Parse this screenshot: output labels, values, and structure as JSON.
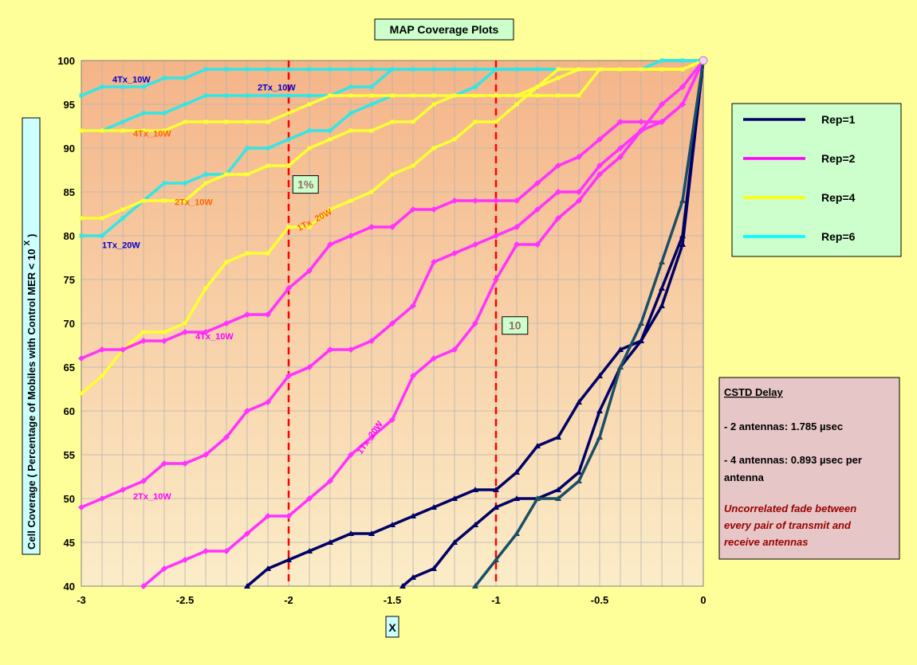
{
  "chart_data": {
    "type": "line",
    "title": "MAP Coverage Plots",
    "xlabel": "X",
    "ylabel": "Cell Coverage ( Percentage of Mobiles with Control MER < 10",
    "ylabel_sup": "X",
    "ylabel_close": ")",
    "xlim": [
      -3,
      0
    ],
    "ylim": [
      40,
      100
    ],
    "xticks": [
      "-3",
      "-2.5",
      "-2",
      "-1.5",
      "-1",
      "-0.5",
      "0"
    ],
    "yticks": [
      "40",
      "45",
      "50",
      "55",
      "60",
      "65",
      "70",
      "75",
      "80",
      "85",
      "90",
      "95",
      "100"
    ],
    "grid": true,
    "legend_position": "right",
    "series": [
      {
        "name": "Rep=6",
        "color": "#33e6e6",
        "marker": "square",
        "x": [
          -3,
          -2.9,
          -2.8,
          -2.7,
          -2.6,
          -2.5,
          -2.4,
          -2.3,
          -2.2,
          -2.1,
          -2,
          -1.9,
          -1.8,
          -1.7,
          -1.6,
          -1.5,
          -1.4,
          -1.3,
          -1.2,
          -1.1,
          -1,
          -0.9,
          -0.8,
          -0.7,
          -0.6,
          -0.5,
          -0.4,
          -0.3,
          -0.2,
          -0.1,
          0
        ],
        "y": [
          96,
          97,
          97,
          97,
          98,
          98,
          99,
          99,
          99,
          99,
          99,
          99,
          99,
          99,
          99,
          99,
          99,
          99,
          99,
          99,
          99,
          99,
          99,
          99,
          99,
          99,
          99,
          99,
          100,
          100,
          100
        ]
      },
      {
        "name": "Rep=6",
        "color": "#33e6e6",
        "marker": "square",
        "x": [
          -3,
          -2.9,
          -2.8,
          -2.7,
          -2.6,
          -2.5,
          -2.4,
          -2.3,
          -2.2,
          -2.1,
          -2,
          -1.9,
          -1.8,
          -1.7,
          -1.6,
          -1.5,
          -1.4,
          -1.3,
          -1.2,
          -1.1,
          -1,
          -0.9,
          -0.8,
          -0.7,
          -0.6,
          -0.5,
          -0.4,
          -0.3,
          -0.2,
          -0.1,
          0
        ],
        "y": [
          92,
          92,
          93,
          94,
          94,
          95,
          96,
          96,
          96,
          96,
          96,
          96,
          96,
          97,
          97,
          99,
          99,
          99,
          99,
          99,
          99,
          99,
          99,
          99,
          99,
          99,
          99,
          99,
          100,
          100,
          100
        ]
      },
      {
        "name": "Rep=6",
        "color": "#33e6e6",
        "marker": "square",
        "x": [
          -3,
          -2.9,
          -2.8,
          -2.7,
          -2.6,
          -2.5,
          -2.4,
          -2.3,
          -2.2,
          -2.1,
          -2,
          -1.9,
          -1.8,
          -1.7,
          -1.6,
          -1.5,
          -1.4,
          -1.3,
          -1.2,
          -1.1,
          -1,
          -0.9,
          -0.8,
          -0.7,
          -0.6,
          -0.5,
          -0.4,
          -0.3,
          -0.2,
          -0.1,
          0
        ],
        "y": [
          80,
          80,
          82,
          84,
          86,
          86,
          87,
          87,
          90,
          90,
          91,
          92,
          92,
          94,
          95,
          96,
          96,
          96,
          96,
          97,
          99,
          99,
          99,
          99,
          99,
          99,
          99,
          99,
          100,
          100,
          100
        ]
      },
      {
        "name": "Rep=4",
        "color": "#ffff33",
        "marker": "square",
        "x": [
          -3,
          -2.9,
          -2.8,
          -2.7,
          -2.6,
          -2.5,
          -2.4,
          -2.3,
          -2.2,
          -2.1,
          -2,
          -1.9,
          -1.8,
          -1.7,
          -1.6,
          -1.5,
          -1.4,
          -1.3,
          -1.2,
          -1.1,
          -1,
          -0.9,
          -0.8,
          -0.7,
          -0.6,
          -0.5,
          -0.4,
          -0.3,
          -0.2,
          -0.1,
          0
        ],
        "y": [
          92,
          92,
          92,
          92,
          92,
          93,
          93,
          93,
          93,
          93,
          94,
          95,
          96,
          96,
          96,
          96,
          96,
          96,
          96,
          96,
          96,
          96,
          96,
          96,
          96,
          99,
          99,
          99,
          99,
          99,
          100
        ]
      },
      {
        "name": "Rep=4",
        "color": "#ffff33",
        "marker": "square",
        "x": [
          -3,
          -2.9,
          -2.8,
          -2.7,
          -2.6,
          -2.5,
          -2.4,
          -2.3,
          -2.2,
          -2.1,
          -2,
          -1.9,
          -1.8,
          -1.7,
          -1.6,
          -1.5,
          -1.4,
          -1.3,
          -1.2,
          -1.1,
          -1,
          -0.9,
          -0.8,
          -0.7,
          -0.6,
          -0.5,
          -0.4,
          -0.3,
          -0.2,
          -0.1,
          0
        ],
        "y": [
          82,
          82,
          83,
          84,
          84,
          84,
          86,
          87,
          87,
          88,
          88,
          90,
          91,
          92,
          92,
          93,
          93,
          95,
          96,
          96,
          96,
          96,
          97,
          98,
          99,
          99,
          99,
          99,
          99,
          99,
          100
        ]
      },
      {
        "name": "Rep=4",
        "color": "#ffff33",
        "marker": "square",
        "x": [
          -3,
          -2.9,
          -2.8,
          -2.7,
          -2.6,
          -2.5,
          -2.4,
          -2.3,
          -2.2,
          -2.1,
          -2,
          -1.9,
          -1.8,
          -1.7,
          -1.6,
          -1.5,
          -1.4,
          -1.3,
          -1.2,
          -1.1,
          -1,
          -0.9,
          -0.8,
          -0.7,
          -0.6,
          -0.5,
          -0.4,
          -0.3,
          -0.2,
          -0.1,
          0
        ],
        "y": [
          62,
          64,
          67,
          69,
          69,
          70,
          74,
          77,
          78,
          78,
          81,
          81,
          83,
          84,
          85,
          87,
          88,
          90,
          91,
          93,
          93,
          95,
          97,
          99,
          99,
          99,
          99,
          99,
          99,
          99,
          100
        ]
      },
      {
        "name": "Rep=2",
        "color": "#ff33ff",
        "marker": "diamond",
        "x": [
          -3,
          -2.9,
          -2.8,
          -2.7,
          -2.6,
          -2.5,
          -2.4,
          -2.3,
          -2.2,
          -2.1,
          -2,
          -1.9,
          -1.8,
          -1.7,
          -1.6,
          -1.5,
          -1.4,
          -1.3,
          -1.2,
          -1.1,
          -1,
          -0.9,
          -0.8,
          -0.7,
          -0.6,
          -0.5,
          -0.4,
          -0.3,
          -0.2,
          -0.1,
          0
        ],
        "y": [
          66,
          67,
          67,
          68,
          68,
          69,
          69,
          70,
          71,
          71,
          74,
          76,
          79,
          80,
          81,
          81,
          83,
          83,
          84,
          84,
          84,
          84,
          86,
          88,
          89,
          91,
          93,
          93,
          93,
          95,
          100
        ]
      },
      {
        "name": "Rep=2",
        "color": "#ff33ff",
        "marker": "diamond",
        "x": [
          -3,
          -2.9,
          -2.8,
          -2.7,
          -2.6,
          -2.5,
          -2.4,
          -2.3,
          -2.2,
          -2.1,
          -2,
          -1.9,
          -1.8,
          -1.7,
          -1.6,
          -1.5,
          -1.4,
          -1.3,
          -1.2,
          -1.1,
          -1,
          -0.9,
          -0.8,
          -0.7,
          -0.6,
          -0.5,
          -0.4,
          -0.3,
          -0.2,
          -0.1,
          0
        ],
        "y": [
          49,
          50,
          51,
          52,
          54,
          54,
          55,
          57,
          60,
          61,
          64,
          65,
          67,
          67,
          68,
          70,
          72,
          77,
          78,
          79,
          80,
          81,
          83,
          85,
          85,
          88,
          90,
          92,
          95,
          97,
          100
        ]
      },
      {
        "name": "Rep=2",
        "color": "#ff33ff",
        "marker": "diamond",
        "x": [
          -2.7,
          -2.6,
          -2.5,
          -2.4,
          -2.3,
          -2.2,
          -2.1,
          -2,
          -1.9,
          -1.8,
          -1.7,
          -1.6,
          -1.5,
          -1.4,
          -1.3,
          -1.2,
          -1.1,
          -1,
          -0.9,
          -0.8,
          -0.7,
          -0.6,
          -0.5,
          -0.4,
          -0.3,
          -0.2,
          -0.1,
          0
        ],
        "y": [
          40,
          42,
          43,
          44,
          44,
          46,
          48,
          48,
          50,
          52,
          55,
          57,
          59,
          64,
          66,
          67,
          70,
          75,
          79,
          79,
          82,
          84,
          87,
          89,
          92,
          93,
          95,
          100
        ]
      },
      {
        "name": "Rep=1",
        "color": "#000066",
        "marker": "triangle",
        "x": [
          -2.2,
          -2.1,
          -2,
          -1.9,
          -1.8,
          -1.7,
          -1.6,
          -1.5,
          -1.4,
          -1.3,
          -1.2,
          -1.1,
          -1,
          -0.9,
          -0.8,
          -0.7,
          -0.6,
          -0.5,
          -0.4,
          -0.3,
          -0.2,
          -0.1,
          0
        ],
        "y": [
          40,
          42,
          43,
          44,
          45,
          46,
          46,
          47,
          48,
          49,
          50,
          51,
          51,
          53,
          56,
          57,
          61,
          64,
          67,
          68,
          72,
          79,
          100
        ]
      },
      {
        "name": "Rep=1",
        "color": "#000066",
        "marker": "triangle",
        "x": [
          -1.45,
          -1.4,
          -1.3,
          -1.2,
          -1.1,
          -1,
          -0.9,
          -0.8,
          -0.7,
          -0.6,
          -0.5,
          -0.4,
          -0.3,
          -0.2,
          -0.1,
          0
        ],
        "y": [
          40,
          41,
          42,
          45,
          47,
          49,
          50,
          50,
          51,
          53,
          60,
          65,
          68,
          74,
          80,
          100
        ]
      },
      {
        "name": "Rep=1",
        "color": "#1a4d66",
        "marker": "triangle",
        "x": [
          -1.1,
          -1,
          -0.9,
          -0.8,
          -0.7,
          -0.6,
          -0.5,
          -0.4,
          -0.3,
          -0.2,
          -0.1,
          0
        ],
        "y": [
          40,
          43,
          46,
          50,
          50,
          52,
          57,
          65,
          70,
          77,
          84,
          100
        ]
      }
    ],
    "legend": [
      {
        "label": "Rep=1",
        "color": "#000066"
      },
      {
        "label": "Rep=2",
        "color": "#ff00ff"
      },
      {
        "label": "Rep=4",
        "color": "#ffff00"
      },
      {
        "label": "Rep=6",
        "color": "#00ffff"
      }
    ],
    "reference_lines": [
      {
        "x": -2,
        "label": "1%"
      },
      {
        "x": -1,
        "label": "10"
      }
    ],
    "annotations": [
      {
        "text": "4Tx_10W",
        "x": -2.85,
        "y": 97.5,
        "color": "#0000cc",
        "angle": 0
      },
      {
        "text": "2Tx_10W",
        "x": -2.15,
        "y": 96.6,
        "color": "#0000cc",
        "angle": 0
      },
      {
        "text": "4Tx_10W",
        "x": -2.75,
        "y": 91.3,
        "color": "#ff6600",
        "angle": 0
      },
      {
        "text": "2Tx_10W",
        "x": -2.55,
        "y": 83.5,
        "color": "#ff6600",
        "angle": 0
      },
      {
        "text": "1Tx_20W",
        "x": -2.9,
        "y": 78.6,
        "color": "#0000cc",
        "angle": 0
      },
      {
        "text": "1Tx_20W",
        "x": -1.95,
        "y": 80.5,
        "color": "#ff6600",
        "angle": -28
      },
      {
        "text": "4Tx_10W",
        "x": -2.45,
        "y": 68.2,
        "color": "#ff00ff",
        "angle": 0
      },
      {
        "text": "2Tx_10W",
        "x": -2.75,
        "y": 49.9,
        "color": "#ff00ff",
        "angle": 0
      },
      {
        "text": "1Tx_20W",
        "x": -1.65,
        "y": 55.0,
        "color": "#ff00ff",
        "angle": -55
      }
    ],
    "info_box": {
      "title": "CSTD Delay",
      "line1": "- 2 antennas: 1.785 µsec",
      "line2a": "- 4 antennas: 0.893 µsec per",
      "line2b": "antenna",
      "note1": "Uncorrelated fade between",
      "note2": "every pair of transmit and",
      "note3": "receive antennas"
    }
  }
}
